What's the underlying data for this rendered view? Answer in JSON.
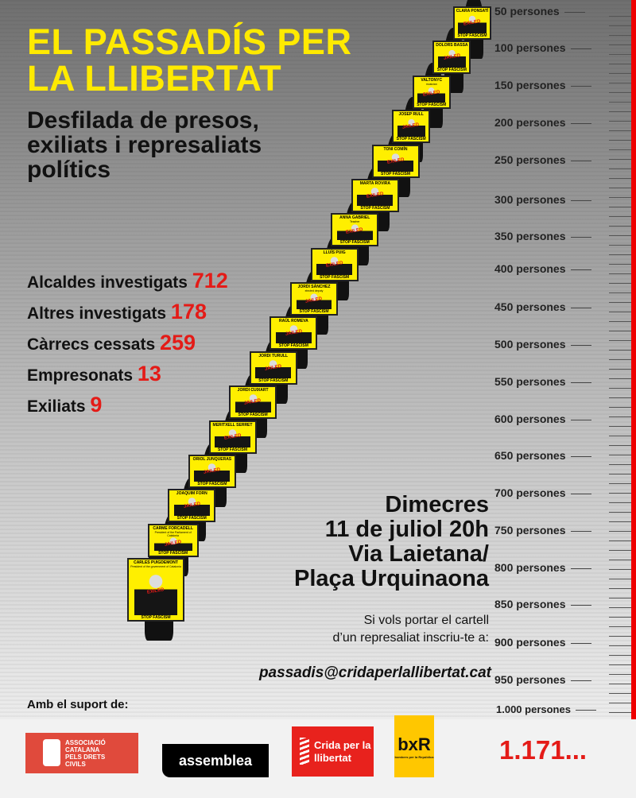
{
  "title": [
    "EL PASSADÍS PER",
    "LA LLIBERTAT"
  ],
  "subtitle": [
    "Desfilada de presos,",
    "exiliats i represaliats",
    "polítics"
  ],
  "stats": [
    {
      "label": "Alcaldes investigats",
      "value": "712"
    },
    {
      "label": "Altres investigats",
      "value": "178"
    },
    {
      "label": "Càrrecs cessats",
      "value": "259"
    },
    {
      "label": "Empresonats",
      "value": "13"
    },
    {
      "label": "Exiliats",
      "value": "9"
    }
  ],
  "event": [
    "Dimecres",
    "11 de juliol 20h",
    "Via Laietana/",
    "Plaça Urquinaona"
  ],
  "invite": [
    "Si vols portar el cartell",
    "d’un represaliat inscriu-te a:"
  ],
  "email": "passadis@cridaperlallibertat.cat",
  "support_label": "Amb el suport de:",
  "scale": [
    "50 persones",
    "100 persones",
    "150 persones",
    "200 persones",
    "250 persones",
    "300 persones",
    "350 persones",
    "400 persones",
    "450 persones",
    "500 persones",
    "550 persones",
    "600 persones",
    "650 persones",
    "700 persones",
    "750 persones",
    "800 persones",
    "850 persones",
    "900 persones",
    "950 persones",
    "1.000 persones"
  ],
  "total": "1.171...",
  "sign_footer": "STOP FASCISM",
  "signs": [
    {
      "name": "CARLES PUIGDEMONT",
      "desc": "President of the government of Catalonia",
      "stamp": "EXILED"
    },
    {
      "name": "CARME FORCADELL",
      "desc": "President of the Parliament of Catalonia",
      "stamp": "JAILED"
    },
    {
      "name": "JOAQUIM FORN",
      "desc": "",
      "stamp": "JAILED"
    },
    {
      "name": "ORIOL JUNQUERAS",
      "desc": "",
      "stamp": "JAILED"
    },
    {
      "name": "MERITXELL SERRET",
      "desc": "",
      "stamp": "EXILED"
    },
    {
      "name": "JORDI CUIXART",
      "desc": "",
      "stamp": "JAILED"
    },
    {
      "name": "JORDI TURULL",
      "desc": "",
      "stamp": "JAILED"
    },
    {
      "name": "RAÜL ROMEVA",
      "desc": "",
      "stamp": "JAILED"
    },
    {
      "name": "JORDI SÀNCHEZ",
      "desc": "elected deputy",
      "stamp": "JAILED"
    },
    {
      "name": "LLUÍS PUIG",
      "desc": "",
      "stamp": "EXILED"
    },
    {
      "name": "ANNA GABRIEL",
      "desc": "Teacher",
      "stamp": "EXILED"
    },
    {
      "name": "MARTA ROVIRA",
      "desc": "",
      "stamp": "EXILED"
    },
    {
      "name": "TONI COMÍN",
      "desc": "",
      "stamp": "EXILED"
    },
    {
      "name": "JOSEP RULL",
      "desc": "",
      "stamp": "JAILED"
    },
    {
      "name": "VALTONYC",
      "desc": "musician",
      "stamp": "EXILED"
    },
    {
      "name": "DOLORS BASSA",
      "desc": "",
      "stamp": "JAILED"
    },
    {
      "name": "CLARA PONSATÍ",
      "desc": "",
      "stamp": "EXILED"
    }
  ],
  "logos": {
    "acdc": "ASSOCIACIÓ CATALANA PELS DRETS CIVILS",
    "assemblea": "assemblea",
    "crida": "Crida per la llibertat",
    "bxr": "bxR",
    "bxr_sub": "bombers per la República"
  },
  "colors": {
    "title_yellow": "#ffea00",
    "accent_red": "#e41b17",
    "sign_yellow": "#ffef00"
  }
}
